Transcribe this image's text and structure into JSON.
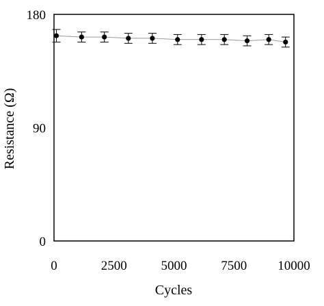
{
  "chart_data": {
    "type": "scatter",
    "xlabel": "Cycles",
    "ylabel": "Resistance (Ω)",
    "xlim": [
      0,
      10000
    ],
    "ylim": [
      0,
      180
    ],
    "xticks": [
      0,
      2500,
      5000,
      7500,
      10000
    ],
    "xtick_labels": [
      "0",
      "2500",
      "5000",
      "7500",
      "10000"
    ],
    "yticks": [
      0,
      90,
      180
    ],
    "ytick_labels": [
      "0",
      "90",
      "180"
    ],
    "grid": false,
    "legend": "none",
    "trendline": true,
    "series": [
      {
        "x": [
          100,
          1150,
          2100,
          3100,
          4100,
          5150,
          6150,
          7100,
          8050,
          8950,
          9650
        ],
        "y": [
          163,
          162,
          162,
          161,
          161,
          160,
          160,
          160,
          159,
          160,
          158
        ],
        "error": [
          5,
          4,
          4,
          4,
          4,
          4,
          4,
          4,
          4,
          4,
          4
        ]
      }
    ]
  },
  "colors": {
    "marker": "#000000",
    "trendline": "#9a9a9a",
    "axes": "#000000",
    "errorbar": "#000000"
  }
}
